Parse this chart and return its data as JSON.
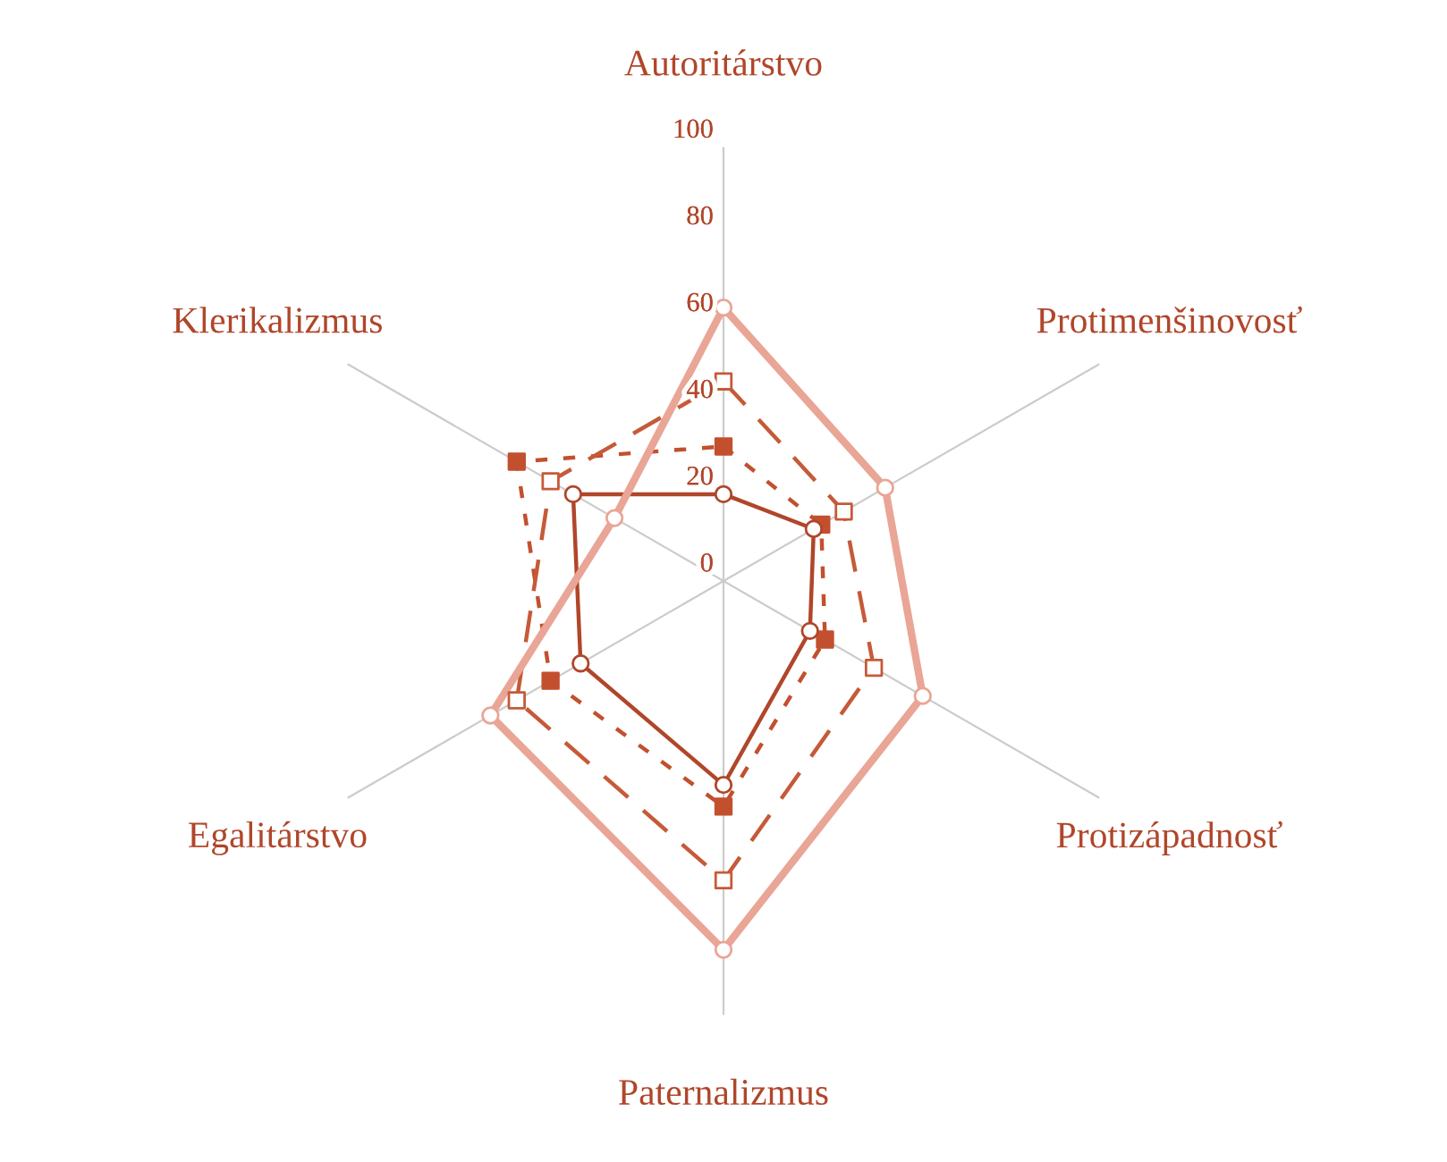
{
  "chart_data": {
    "type": "radar",
    "categories": [
      "Autoritárstvo",
      "Protimenšinovosť",
      "Protizápadnosť",
      "Paternalizmus",
      "Egalitárstvo",
      "Klerikalizmus"
    ],
    "ylim": [
      0,
      100
    ],
    "yticks": [
      0,
      20,
      40,
      60,
      80,
      100
    ],
    "grid": "x",
    "legend": false,
    "series": [
      {
        "color": "#b0462a",
        "values": [
          20,
          24,
          23,
          47,
          38,
          40
        ],
        "marker": "circle",
        "line_style": "solid"
      },
      {
        "color": "#c2502e",
        "values": [
          31,
          26,
          27,
          52,
          46,
          55
        ],
        "marker": "square",
        "line_style": "dotted"
      },
      {
        "color": "#c65a38",
        "values": [
          46,
          32,
          40,
          69,
          55,
          46
        ],
        "marker": "square",
        "line_style": "dashed"
      },
      {
        "color": "#e9a595",
        "values": [
          63,
          43,
          53,
          85,
          62,
          29
        ],
        "marker": "circle",
        "line_style": "solid"
      }
    ]
  }
}
